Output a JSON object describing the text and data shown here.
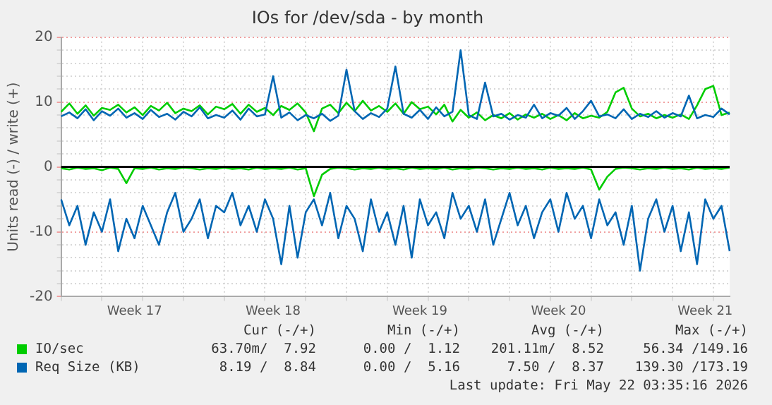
{
  "chart_data": {
    "type": "line",
    "title": "IOs for /dev/sda - by month",
    "ylabel": "Units read (-) / write (+)",
    "categories": [
      null,
      null,
      null,
      null,
      null,
      null,
      null,
      null,
      null,
      "Week 17",
      null,
      null,
      null,
      null,
      null,
      null,
      null,
      null,
      null,
      null,
      null,
      null,
      null,
      null,
      null,
      null,
      "Week 18",
      null,
      null,
      null,
      null,
      null,
      null,
      null,
      null,
      null,
      null,
      null,
      null,
      null,
      null,
      null,
      null,
      null,
      "Week 19",
      null,
      null,
      null,
      null,
      null,
      null,
      null,
      null,
      null,
      null,
      null,
      null,
      null,
      null,
      null,
      null,
      "Week 20",
      null,
      null,
      null,
      null,
      null,
      null,
      null,
      null,
      null,
      null,
      null,
      null,
      null,
      null,
      null,
      null,
      null,
      "Week 21",
      null,
      null,
      null
    ],
    "series": [
      {
        "color": "#00cc00",
        "values": [
          -0.2,
          -0.4,
          -0.1,
          -0.3,
          -0.2,
          -0.5,
          -0.1,
          -0.3,
          -2.5,
          -0.2,
          -0.3,
          -0.1,
          -0.4,
          -0.2,
          -0.3,
          -0.1,
          -0.2,
          -0.4,
          -0.2,
          -0.3,
          -0.1,
          -0.3,
          -0.2,
          -0.4,
          -0.1,
          -0.3,
          -0.2,
          -0.3,
          -0.1,
          -0.4,
          -0.2,
          -4.5,
          -1.2,
          -0.3,
          -0.1,
          -0.2,
          -0.4,
          -0.2,
          -0.3,
          -0.1,
          -0.3,
          -0.2,
          -0.4,
          -0.1,
          -0.3,
          -0.2,
          -0.3,
          -0.1,
          -0.4,
          -0.2,
          -0.3,
          -0.1,
          -0.2,
          -0.4,
          -0.2,
          -0.3,
          -0.1,
          -0.3,
          -0.2,
          -0.4,
          -0.1,
          -0.3,
          -0.2,
          -0.3,
          -0.1,
          -0.4,
          -3.5,
          -1.5,
          -0.3,
          -0.1,
          -0.2,
          -0.4,
          -0.2,
          -0.3,
          -0.1,
          -0.3,
          -0.2,
          -0.4,
          -0.1,
          -0.3,
          -0.2,
          -0.3,
          -0.1
        ]
      },
      {
        "name": "IO/sec",
        "color": "#00cc00",
        "values": [
          8.5,
          9.8,
          8.2,
          9.5,
          7.9,
          9.1,
          8.8,
          9.6,
          8.4,
          9.2,
          8.0,
          9.4,
          8.7,
          9.9,
          8.3,
          9.0,
          8.6,
          9.5,
          8.1,
          9.3,
          8.9,
          9.7,
          8.2,
          9.6,
          8.5,
          9.1,
          8.0,
          9.4,
          8.8,
          9.8,
          8.4,
          5.5,
          9.0,
          9.6,
          8.3,
          9.9,
          8.6,
          10.2,
          8.7,
          9.4,
          8.5,
          9.8,
          8.2,
          10.0,
          8.9,
          9.3,
          8.1,
          9.6,
          7.0,
          8.8,
          7.6,
          8.4,
          7.2,
          8.0,
          7.5,
          8.3,
          7.3,
          8.1,
          7.6,
          8.2,
          7.4,
          8.0,
          7.2,
          8.3,
          7.5,
          7.9,
          7.6,
          8.5,
          11.5,
          12.2,
          9.0,
          7.8,
          8.2,
          7.5,
          8.0,
          7.6,
          8.1,
          7.4,
          9.5,
          12.0,
          12.5,
          8.0,
          8.4
        ]
      },
      {
        "color": "#0066b3",
        "values": [
          -5,
          -9,
          -6,
          -12,
          -7,
          -10,
          -5,
          -13,
          -8,
          -11,
          -6,
          -9,
          -12,
          -7,
          -4,
          -10,
          -8,
          -5,
          -11,
          -6,
          -7,
          -4,
          -9,
          -6,
          -10,
          -5,
          -8,
          -15,
          -6,
          -14,
          -7,
          -5,
          -9,
          -4,
          -11,
          -6,
          -8,
          -13,
          -5,
          -10,
          -7,
          -12,
          -6,
          -14,
          -5,
          -9,
          -7,
          -11,
          -4,
          -8,
          -6,
          -10,
          -5,
          -12,
          -8,
          -4,
          -9,
          -6,
          -11,
          -7,
          -5,
          -10,
          -4,
          -8,
          -6,
          -11,
          -5,
          -9,
          -7,
          -12,
          -6,
          -16,
          -8,
          -5,
          -10,
          -6,
          -13,
          -7,
          -15,
          -5,
          -8,
          -6,
          -13
        ]
      },
      {
        "name": "Req Size (KB)",
        "color": "#0066b3",
        "values": [
          7.8,
          8.4,
          7.5,
          8.9,
          7.2,
          8.6,
          7.9,
          9.0,
          7.6,
          8.3,
          7.4,
          8.8,
          7.7,
          8.2,
          7.3,
          8.5,
          7.8,
          9.2,
          7.5,
          8.0,
          7.6,
          8.7,
          7.3,
          9.0,
          7.8,
          8.1,
          14.0,
          7.6,
          8.4,
          7.2,
          8.0,
          7.5,
          8.2,
          7.1,
          7.9,
          15.0,
          8.6,
          7.4,
          8.3,
          7.7,
          9.0,
          15.5,
          8.2,
          7.6,
          8.8,
          7.4,
          9.2,
          7.8,
          8.5,
          18.0,
          8.0,
          7.4,
          13.0,
          7.8,
          8.2,
          7.3,
          8.0,
          7.6,
          9.6,
          7.5,
          8.3,
          7.9,
          9.1,
          7.4,
          8.6,
          10.2,
          7.8,
          8.1,
          7.5,
          8.9,
          7.4,
          8.2,
          7.7,
          8.6,
          7.6,
          8.3,
          7.8,
          11.0,
          7.5,
          8.0,
          7.7,
          9.0,
          8.1
        ]
      }
    ],
    "ylim": [
      -20,
      20
    ],
    "yticks": [
      -20,
      {
        "value": -18,
        "label": null
      },
      {
        "value": -16,
        "label": null
      },
      {
        "value": -14,
        "label": null
      },
      {
        "value": -12,
        "label": null
      },
      -10,
      {
        "value": -8,
        "label": null
      },
      {
        "value": -6,
        "label": null
      },
      {
        "value": -4,
        "label": null
      },
      {
        "value": -2,
        "label": null
      },
      0,
      {
        "value": 2,
        "label": null
      },
      {
        "value": 4,
        "label": null
      },
      {
        "value": 6,
        "label": null
      },
      {
        "value": 8,
        "label": null
      },
      10,
      {
        "value": 12,
        "label": null
      },
      {
        "value": 14,
        "label": null
      },
      {
        "value": 16,
        "label": null
      },
      {
        "value": 18,
        "label": null
      },
      20
    ],
    "ref_lines": [
      {
        "axis": "y",
        "value": 0,
        "color": "#000000"
      }
    ],
    "grid": true,
    "legend": "bottom",
    "marker": "none",
    "line_style": "solid",
    "annotations": [
      "Cur (-/+)",
      "Min (-/+)",
      "Avg (-/+)",
      "Max (-/+)",
      "63.70m/  7.92",
      "0.00 /  1.12",
      "201.11m/  8.52",
      "56.34 /149.16",
      "8.19 /  8.84",
      "0.00 /  5.16",
      "7.50 /  8.37",
      "139.30 /173.19",
      "Last update: Fri May 22 03:35:16 2026"
    ]
  }
}
